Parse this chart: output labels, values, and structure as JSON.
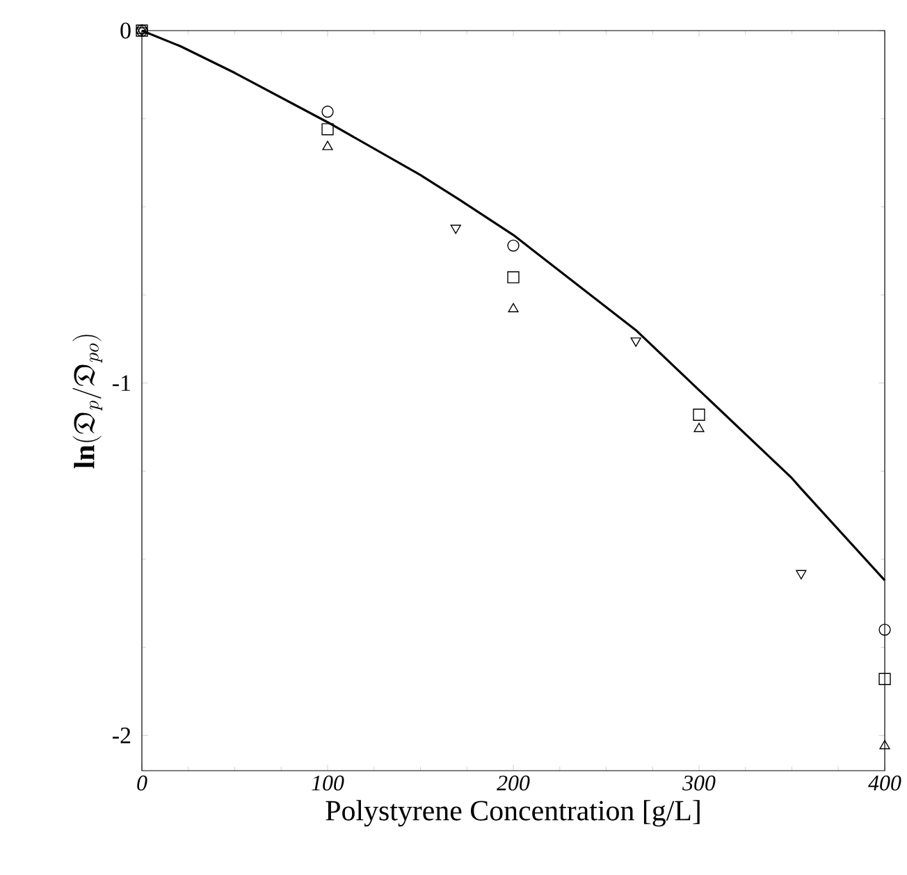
{
  "chart_data": {
    "type": "scatter",
    "xlabel": "Polystyrene Concentration [g/L]",
    "ylabel": "\\mathrm{\\mathbf{ln}}(\\mathfrak{D}_{p}/\\mathfrak{D}_{po})",
    "xlim": [
      0,
      400
    ],
    "ylim": [
      -2.1,
      0
    ],
    "xticks": [
      0,
      100,
      200,
      300,
      400
    ],
    "yticks": [
      0,
      -1,
      -2
    ],
    "series": [
      {
        "marker": "circle",
        "color": "#000000",
        "x": [
          0,
          100,
          200,
          400
        ],
        "values": [
          0,
          -0.23,
          -0.61,
          -1.7
        ]
      },
      {
        "marker": "square",
        "color": "#000000",
        "x": [
          0,
          100,
          200,
          300,
          400
        ],
        "values": [
          0,
          -0.28,
          -0.7,
          -1.09,
          -1.84
        ]
      },
      {
        "marker": "triangle",
        "color": "#000000",
        "x": [
          0,
          100,
          200,
          300,
          400
        ],
        "values": [
          0,
          -0.33,
          -0.79,
          -1.13,
          -2.03
        ]
      },
      {
        "marker": "triangle_down",
        "color": "#000000",
        "x": [
          0,
          169,
          266,
          355
        ],
        "values": [
          0,
          -0.56,
          -0.88,
          -1.54
        ]
      },
      {
        "type": "line",
        "marker": "none",
        "line_style": "solid",
        "color": "#000000",
        "x": [
          0,
          21,
          50,
          100,
          150,
          171,
          200,
          266,
          300,
          350,
          355,
          400
        ],
        "values": [
          0,
          -0.045,
          -0.12,
          -0.26,
          -0.41,
          -0.48,
          -0.58,
          -0.85,
          -1.02,
          -1.27,
          -1.3,
          -1.56
        ]
      }
    ]
  }
}
